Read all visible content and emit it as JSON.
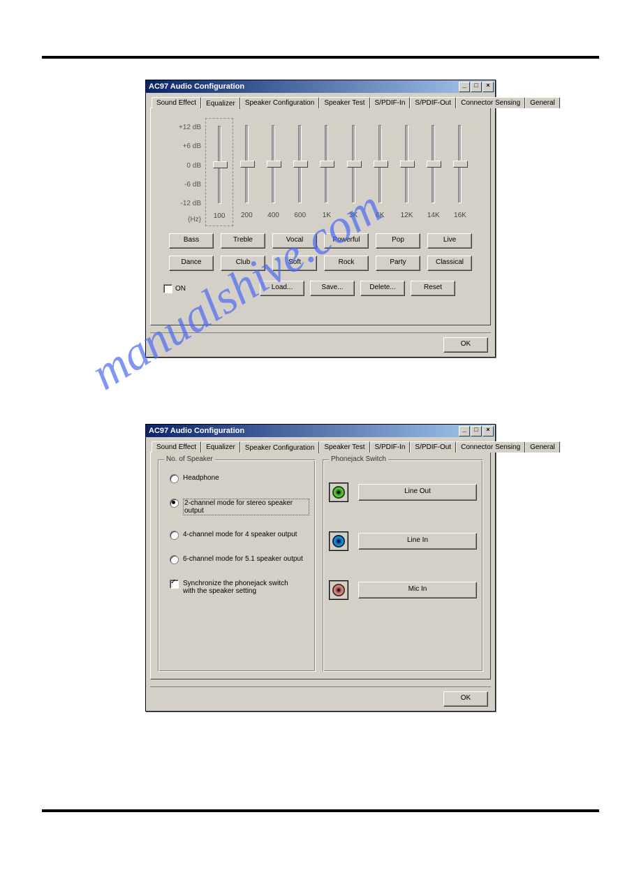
{
  "watermark": "manualshive.com",
  "window1": {
    "title": "AC97 Audio Configuration",
    "tabs": [
      "Sound Effect",
      "Equalizer",
      "Speaker Configuration",
      "Speaker Test",
      "S/PDIF-In",
      "S/PDIF-Out",
      "Connector Sensing",
      "General"
    ],
    "active_tab": "Equalizer",
    "eq": {
      "db_labels": [
        "+12 dB",
        "+6 dB",
        "0 dB",
        "-6 dB",
        "-12 dB"
      ],
      "hz_label": "(Hz)",
      "freqs": [
        "100",
        "200",
        "400",
        "600",
        "1K",
        "3K",
        "6K",
        "12K",
        "14K",
        "16K"
      ],
      "slider_pos": [
        50,
        50,
        50,
        50,
        50,
        50,
        50,
        50,
        50,
        50
      ]
    },
    "presets_row1": [
      "Bass",
      "Treble",
      "Vocal",
      "Powerful",
      "Pop",
      "Live"
    ],
    "presets_row2": [
      "Dance",
      "Club",
      "Soft",
      "Rock",
      "Party",
      "Classical"
    ],
    "on_label": "ON",
    "on_checked": false,
    "actions": [
      "Load...",
      "Save...",
      "Delete...",
      "Reset"
    ],
    "ok": "OK"
  },
  "window2": {
    "title": "AC97 Audio Configuration",
    "tabs": [
      "Sound Effect",
      "Equalizer",
      "Speaker Configuration",
      "Speaker Test",
      "S/PDIF-In",
      "S/PDIF-Out",
      "Connector Sensing",
      "General"
    ],
    "active_tab": "Speaker Configuration",
    "left_group": "No. of Speaker",
    "right_group": "Phonejack Switch",
    "radios": [
      {
        "label": "Headphone",
        "checked": false
      },
      {
        "label": "2-channel mode for stereo speaker output",
        "checked": true
      },
      {
        "label": "4-channel mode for 4 speaker output",
        "checked": false
      },
      {
        "label": "6-channel mode for 5.1 speaker output",
        "checked": false
      }
    ],
    "sync_label": "Synchronize the phonejack switch with the speaker setting",
    "sync_checked": true,
    "jacks": [
      {
        "color": "green",
        "label": "Line Out"
      },
      {
        "color": "blue",
        "label": "Line In"
      },
      {
        "color": "pink",
        "label": "Mic In"
      }
    ],
    "ok": "OK"
  }
}
